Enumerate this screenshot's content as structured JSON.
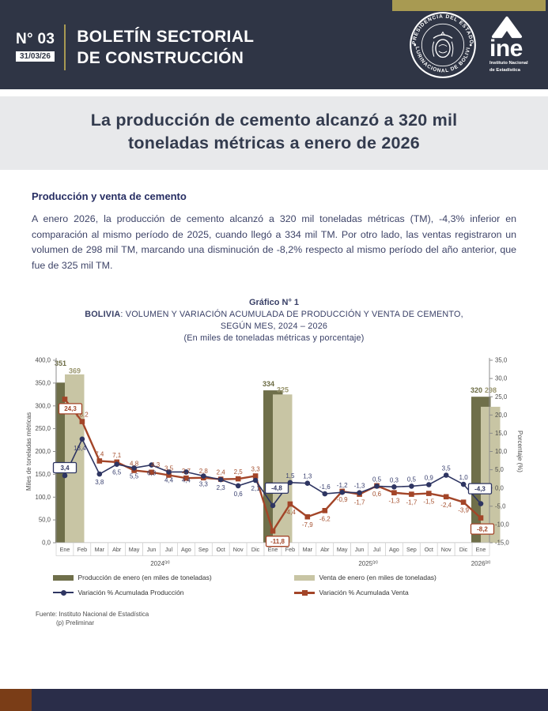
{
  "header": {
    "issue_no": "N° 03",
    "date": "31/03/26",
    "title_line1": "BOLETÍN SECTORIAL",
    "title_line2": "DE CONSTRUCCIÓN",
    "seal_top": "PRESIDENCIA DEL ESTADO",
    "seal_bottom": "PLURINACIONAL DE BOLIVIA",
    "ine_word": "ine",
    "ine_sub1": "Instituto Nacional",
    "ine_sub2": "de Estadística",
    "accent_gold": "#a89a52",
    "header_navy": "#2f3545"
  },
  "banner": {
    "title_line1": "La producción de cemento alcanzó a 320 mil",
    "title_line2": "toneladas métricas a enero de 2026"
  },
  "article": {
    "heading": "Producción y venta de cemento",
    "body": "A enero 2026, la producción de cemento alcanzó a 320 mil toneladas métricas (TM), -4,3% inferior en comparación al mismo período de 2025, cuando llegó a 334 mil TM. Por otro lado, las ventas registraron un volumen de 298 mil TM, marcando una disminución de -8,2% respecto al mismo período del año anterior, que fue de 325 mil TM."
  },
  "chart": {
    "title": "Gráfico N° 1",
    "subtitle_bold": "BOLIVIA",
    "subtitle_rest": ": VOLUMEN Y VARIACIÓN ACUMULADA DE PRODUCCIÓN Y VENTA DE CEMENTO,",
    "subtitle_line2": "SEGÚN MES, 2024 – 2026",
    "subtitle_line3": "(En miles de toneladas métricas y porcentaje)",
    "legend": [
      {
        "label": "Producción de enero (en miles de toneladas)"
      },
      {
        "label": "Venta de enero (en miles de toneladas)"
      },
      {
        "label": "Variación % Acumulada Producción"
      },
      {
        "label": "Variación % Acumulada Venta"
      }
    ]
  },
  "chart_data": {
    "type": "combo-bar-line",
    "months": [
      "Ene",
      "Feb",
      "Mar",
      "Abr",
      "May",
      "Jun",
      "Jul",
      "Ago",
      "Sep",
      "Oct",
      "Nov",
      "Dic",
      "Ene",
      "Feb",
      "Mar",
      "Abr",
      "May",
      "Jun",
      "Jul",
      "Ago",
      "Sep",
      "Oct",
      "Nov",
      "Dic",
      "Ene"
    ],
    "year_groups": [
      {
        "label": "2024",
        "sup": "(p)",
        "start": 0,
        "span": 12
      },
      {
        "label": "2025",
        "sup": "(p)",
        "start": 12,
        "span": 12
      },
      {
        "label": "2026",
        "sup": "(p)",
        "start": 24,
        "span": 1
      }
    ],
    "bars": [
      {
        "month_index": 0,
        "produccion": 351,
        "venta": 369
      },
      {
        "month_index": 12,
        "produccion": 334,
        "venta": 325
      },
      {
        "month_index": 24,
        "produccion": 320,
        "venta": 298
      }
    ],
    "series": [
      {
        "name": "Variación % Acumulada Producción",
        "type": "line",
        "values": [
          3.4,
          13.4,
          3.8,
          6.5,
          5.5,
          6.3,
          4.4,
          4.4,
          3.3,
          2.3,
          0.6,
          2.1,
          -4.8,
          1.5,
          1.3,
          -1.6,
          -1.2,
          -1.3,
          0.5,
          0.3,
          0.5,
          0.9,
          3.5,
          1.0,
          -4.3
        ],
        "labels": [
          "3,4",
          "13,4",
          "3,8",
          "6,5",
          "5,5",
          "6,3",
          "4,4",
          "4,4",
          "3,3",
          "2,3",
          "0,6",
          "2,1",
          "-4,8",
          "1,5",
          "1,3",
          "-1,6",
          "-1,2",
          "-1,3",
          "0,5",
          "0,3",
          "0,5",
          "0,9",
          "3,5",
          "1,0",
          "-4,3"
        ]
      },
      {
        "name": "Variación % Acumulada Venta",
        "type": "line",
        "values": [
          24.3,
          18.2,
          7.4,
          7.1,
          4.8,
          4.3,
          3.5,
          2.7,
          2.8,
          2.4,
          2.5,
          3.3,
          -11.8,
          -4.4,
          -7.9,
          -6.2,
          -0.9,
          -1.7,
          0.6,
          -1.3,
          -1.7,
          -1.5,
          -2.4,
          -3.9,
          -8.2
        ],
        "labels": [
          "24,3",
          "18,2",
          "7,4",
          "7,1",
          "4,8",
          "4,3",
          "3,5",
          "2,7",
          "2,8",
          "2,4",
          "2,5",
          "3,3",
          "-11,8",
          "-4,4",
          "-7,9",
          "-6,2",
          "-0,9",
          "-1,7",
          "0,6",
          "-1,3",
          "-1,7",
          "-1,5",
          "-2,4",
          "-3,9",
          "-8,2"
        ]
      }
    ],
    "axis_left": {
      "label": "Miles de toneladas métricas",
      "min": 0,
      "max": 400,
      "ticks": [
        "400,0",
        "350,0",
        "300,0",
        "250,0",
        "200,0",
        "150,0",
        "100,0",
        "50,0",
        "0,0"
      ]
    },
    "axis_right": {
      "label": "Porcentaje (%)",
      "min": -15,
      "max": 35,
      "ticks": [
        "35,0",
        "30,0",
        "25,0",
        "20,0",
        "15,0",
        "10,0",
        "5,0",
        "0,0",
        "-5,0",
        "-10,0",
        "-15,0"
      ]
    },
    "colors": {
      "bar_produccion": "#6f6f4a",
      "bar_venta": "#c8c5a4",
      "line_produccion": "#2e3562",
      "line_venta": "#a34528"
    }
  },
  "source": {
    "line1": "Fuente: Instituto Nacional de Estadística",
    "line2": "(p) Preliminar"
  }
}
